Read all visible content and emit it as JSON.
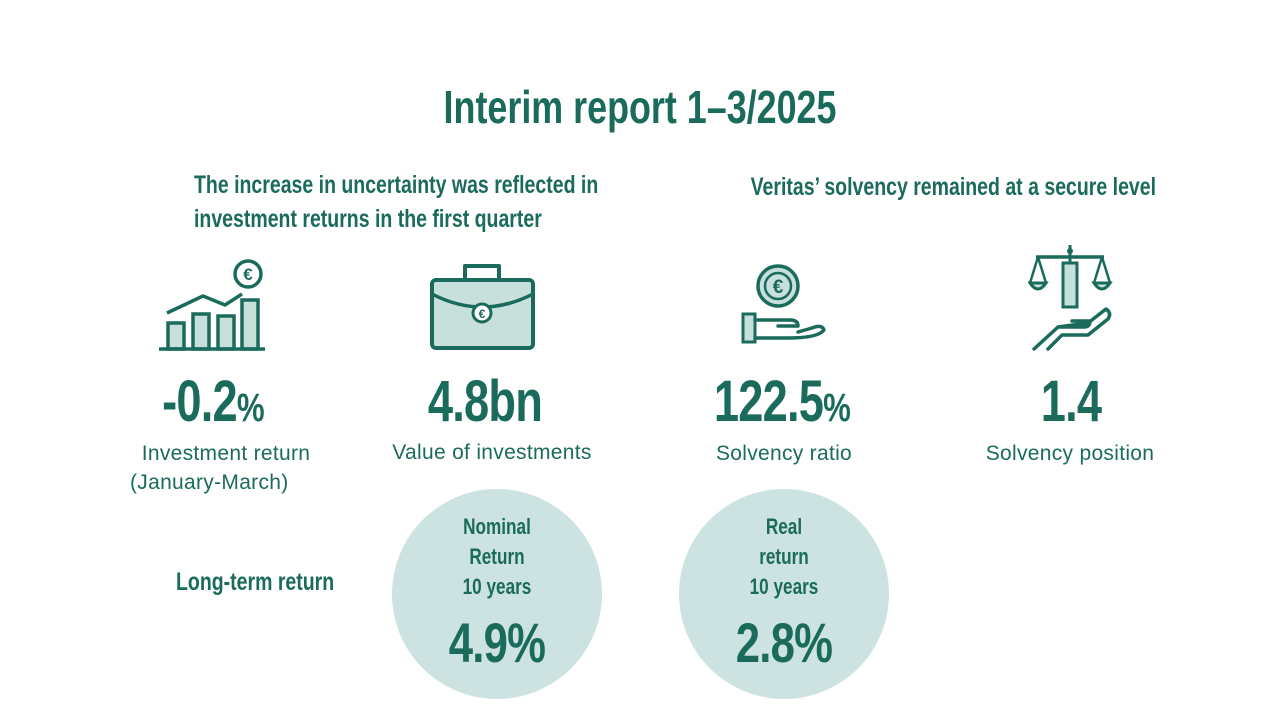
{
  "title": "Interim report 1–3/2025",
  "left_heading": [
    "The increase in uncertainty was reflected in",
    "investment returns in the first quarter"
  ],
  "right_heading": "Veritas’ solvency remained at a secure level",
  "kpis": [
    {
      "value": "-0.2",
      "unit": "%",
      "label_lines": [
        "Investment return",
        "(January-March)"
      ],
      "icon": "bar-chart-euro-icon"
    },
    {
      "value": "4.8bn",
      "unit": "",
      "label_lines": [
        "Value of investments"
      ],
      "icon": "briefcase-euro-icon"
    },
    {
      "value": "122.5",
      "unit": "%",
      "label_lines": [
        "Solvency ratio"
      ],
      "icon": "hand-euro-coin-icon"
    },
    {
      "value": "1.4",
      "unit": "",
      "label_lines": [
        "Solvency position"
      ],
      "icon": "scales-hand-icon"
    }
  ],
  "long_term_label": "Long-term return",
  "circles": [
    {
      "lines": [
        "Nominal",
        "Return",
        "10 years"
      ],
      "value": "4.9%"
    },
    {
      "lines": [
        "Real",
        "return",
        "10 years"
      ],
      "value": "2.8%"
    }
  ],
  "colors": {
    "primary": "#1a6b5c",
    "circle_fill": "#cce3e1",
    "icon_fill": "#c8e0dc"
  }
}
